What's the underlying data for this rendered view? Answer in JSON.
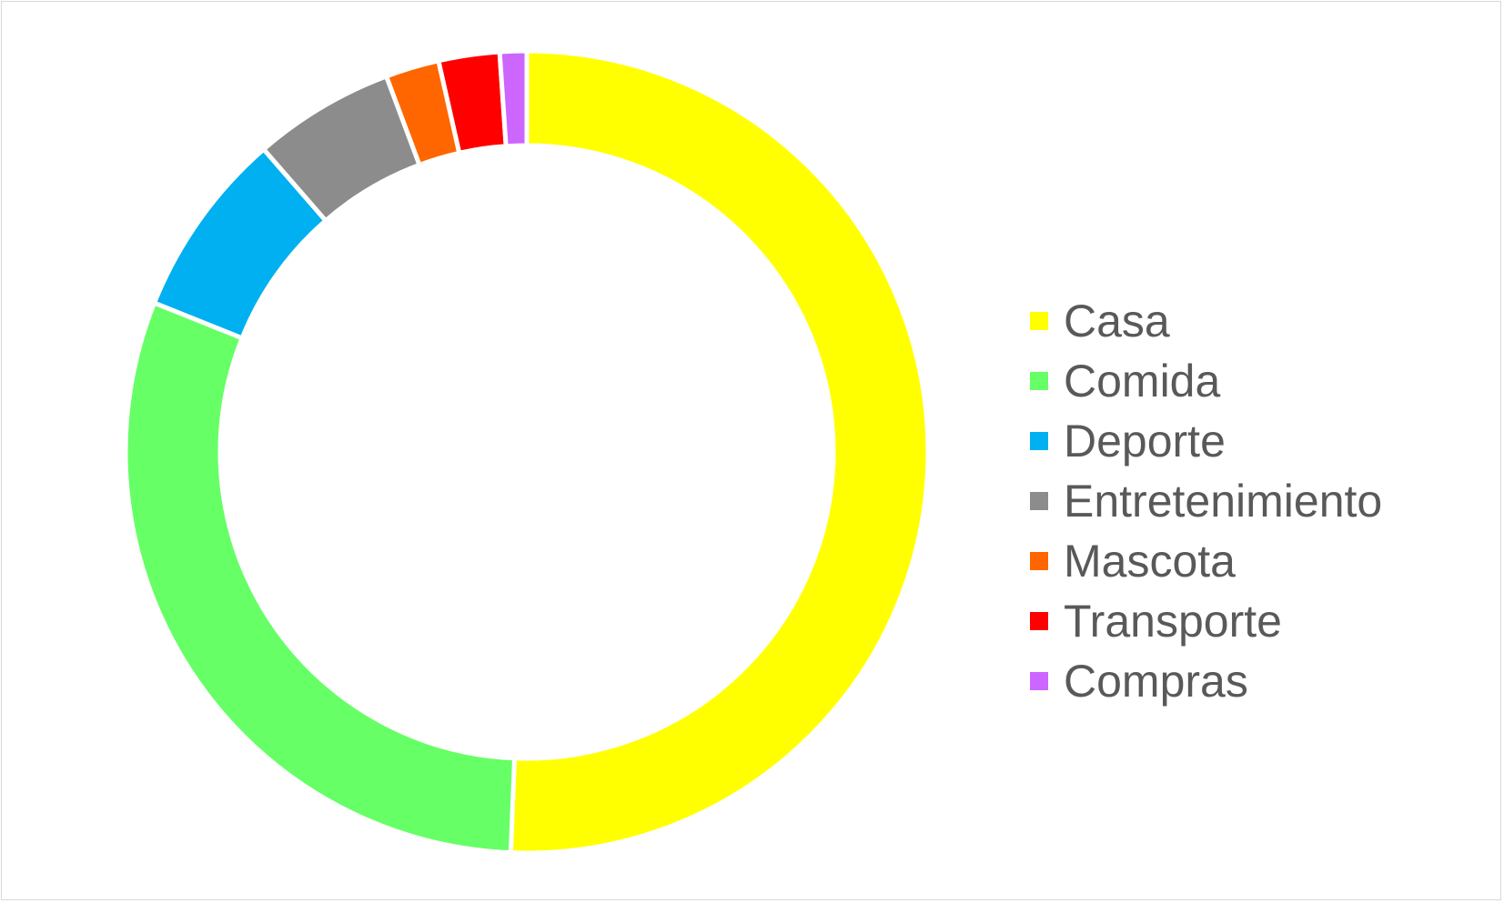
{
  "chart_data": {
    "type": "pie",
    "variant": "donut",
    "title": "",
    "categories": [
      "Casa",
      "Comida",
      "Deporte",
      "Entretenimiento",
      "Mascota",
      "Transporte",
      "Compras"
    ],
    "values": [
      51.6,
      31.0,
      7.7,
      5.8,
      2.2,
      2.5,
      1.1
    ],
    "colors": [
      "#FFFF00",
      "#66FF66",
      "#00B0F0",
      "#8C8C8C",
      "#FF6600",
      "#FF0000",
      "#CC66FF"
    ],
    "legend_position": "right"
  }
}
